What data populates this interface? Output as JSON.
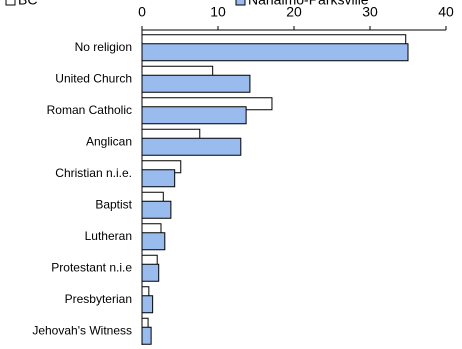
{
  "chart_data": {
    "type": "hbar",
    "categories": [
      "No religion",
      "United Church",
      "Roman Catholic",
      "Anglican",
      "Christian n.i.e.",
      "Baptist",
      "Lutheran",
      "Protestant n.i.e",
      "Presbyterian",
      "Jehovah's Witness"
    ],
    "series": [
      {
        "name": "BC",
        "color": "#ffffff",
        "values": [
          34.7,
          9.3,
          17.1,
          7.6,
          5.1,
          2.8,
          2.5,
          2.0,
          0.9,
          0.8
        ]
      },
      {
        "name": "Nanaimo-Parksville",
        "color": "#99bbee",
        "values": [
          35.0,
          14.2,
          13.7,
          13.0,
          4.3,
          3.8,
          3.0,
          2.2,
          1.4,
          1.2
        ]
      }
    ],
    "xlim": [
      0,
      40
    ],
    "xticks": [
      0,
      10,
      20,
      30,
      40
    ]
  }
}
